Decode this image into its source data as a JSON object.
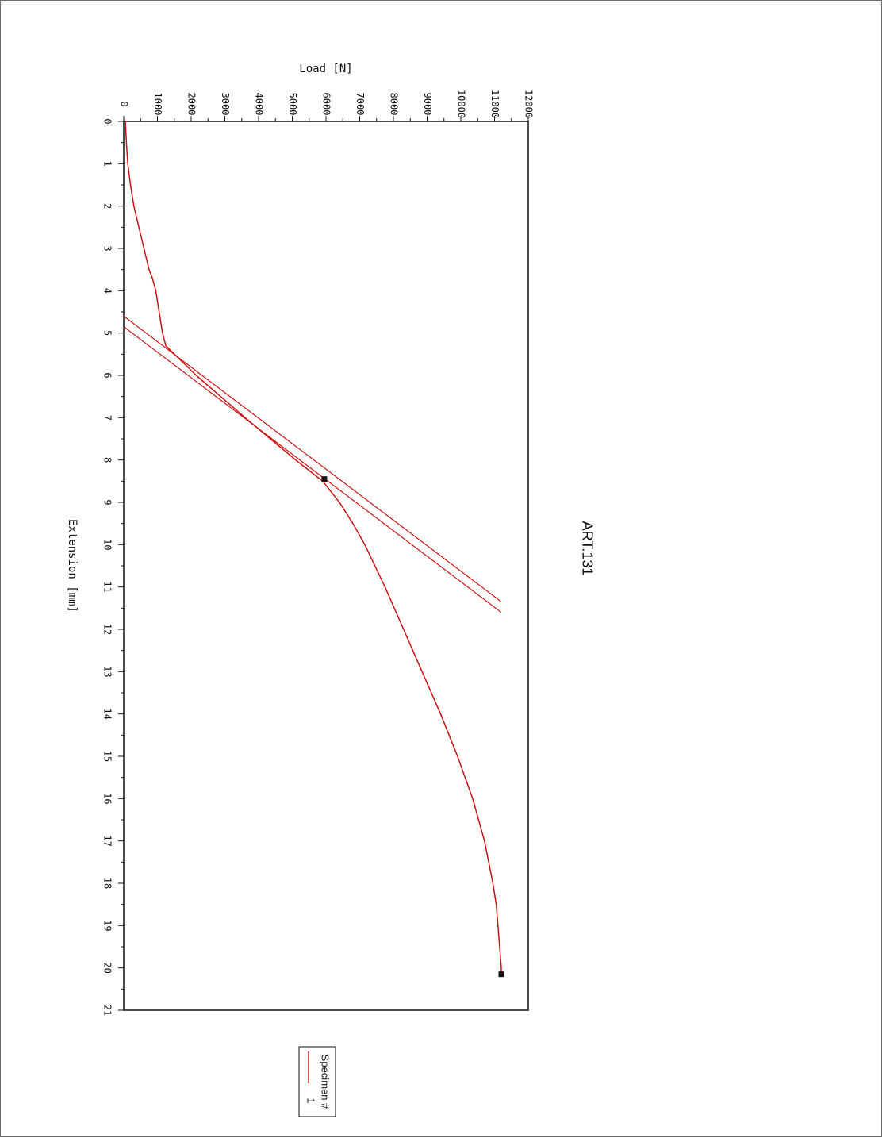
{
  "chart_data": {
    "type": "line",
    "orientation": "rotated 90 degrees clockwise",
    "title": "ART.131",
    "xlabel": "Extension [mm]",
    "ylabel": "Load [N]",
    "xlim": [
      0,
      21
    ],
    "ylim": [
      0,
      12000
    ],
    "x_ticks": [
      "0",
      "1",
      "2",
      "3",
      "4",
      "5",
      "6",
      "7",
      "8",
      "9",
      "10",
      "11",
      "12",
      "13",
      "14",
      "15",
      "16",
      "17",
      "18",
      "19",
      "20",
      "21"
    ],
    "y_ticks": [
      "0",
      "1000",
      "2000",
      "3000",
      "4000",
      "5000",
      "6000",
      "7000",
      "8000",
      "9000",
      "10000",
      "11000",
      "12000"
    ],
    "grid": false,
    "legend": {
      "title": "Specimen #",
      "placement": "bottom",
      "entries": [
        {
          "label": "1",
          "color": "#cc1111"
        }
      ]
    },
    "series": [
      {
        "name": "1",
        "color": "#cc1111",
        "x": [
          0,
          0.5,
          1,
          1.5,
          2,
          2.5,
          3,
          3.5,
          3.7,
          4.0,
          4.5,
          5.0,
          5.3,
          6.0,
          7.0,
          7.5,
          8.0,
          8.5,
          9.0,
          9.5,
          10,
          11,
          12,
          13,
          14,
          15,
          16,
          17,
          18,
          18.5,
          19,
          19.5,
          20,
          20.1
        ],
        "y": [
          50,
          80,
          120,
          200,
          300,
          450,
          600,
          750,
          850,
          950,
          1050,
          1150,
          1250,
          2150,
          3600,
          4350,
          5100,
          5900,
          6400,
          6800,
          7150,
          7750,
          8300,
          8850,
          9400,
          9900,
          10350,
          10700,
          10950,
          11050,
          11100,
          11150,
          11200,
          11200
        ]
      }
    ],
    "fit_lines": [
      {
        "color": "#cc1111",
        "x": [
          4.6,
          11.35
        ],
        "y": [
          0,
          11200
        ]
      },
      {
        "color": "#cc1111",
        "x": [
          4.85,
          11.6
        ],
        "y": [
          0,
          11200
        ]
      }
    ],
    "markers": [
      {
        "x": 8.45,
        "y": 5950,
        "color": "#111111"
      },
      {
        "x": 20.15,
        "y": 11200,
        "color": "#111111"
      }
    ]
  }
}
